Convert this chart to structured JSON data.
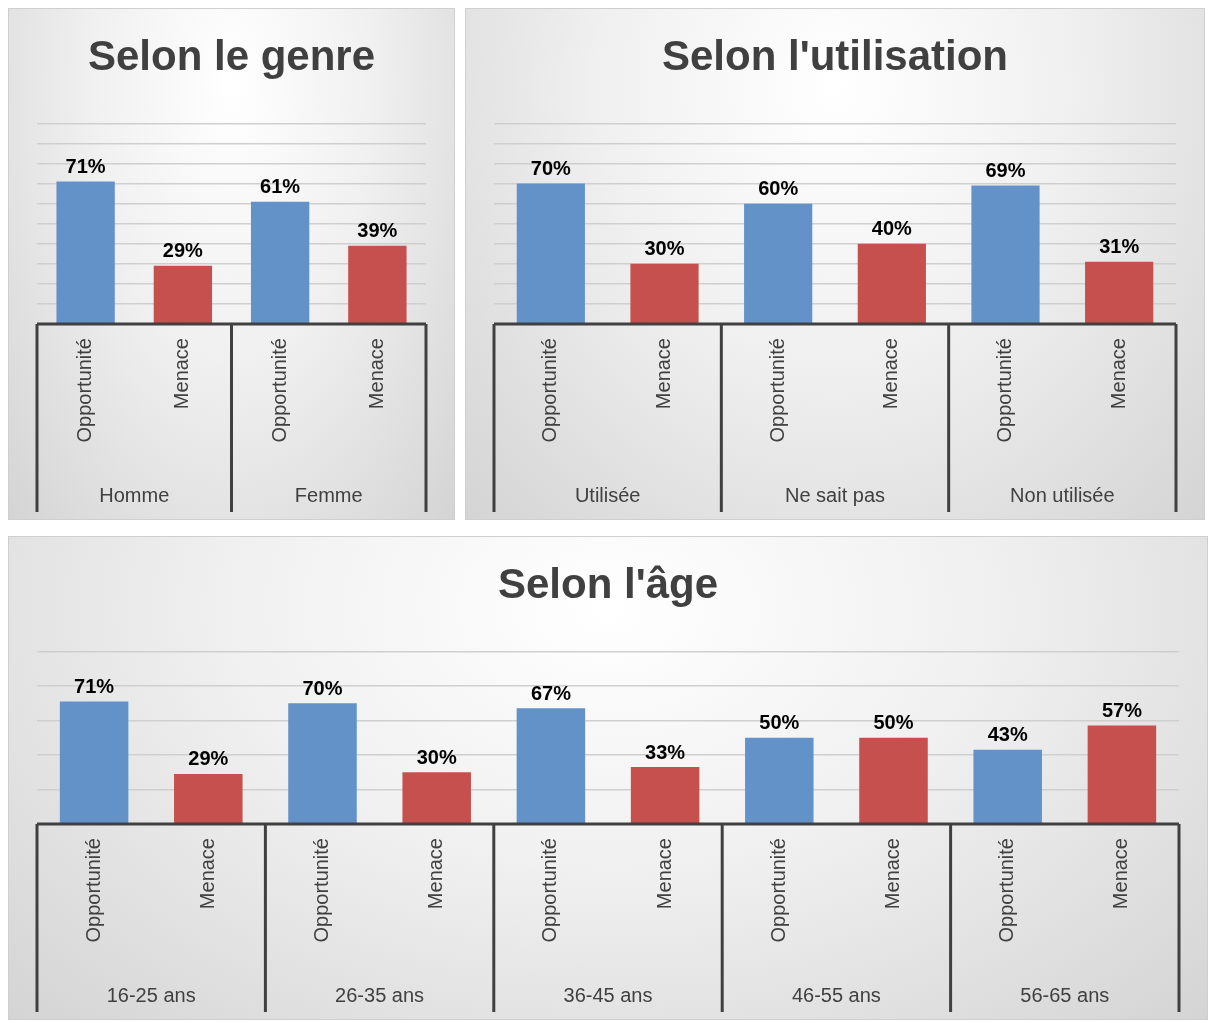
{
  "chart_data": [
    {
      "type": "bar",
      "title": "Selon le genre",
      "categories": [
        "Homme",
        "Femme"
      ],
      "series": [
        {
          "name": "Opportunité",
          "color": "#6392c9",
          "values": [
            71,
            61
          ],
          "value_labels": [
            "71%",
            "61%"
          ]
        },
        {
          "name": "Menace",
          "color": "#c5504d",
          "values": [
            29,
            39
          ],
          "value_labels": [
            "29%",
            "39%"
          ]
        }
      ],
      "ylim": [
        0,
        100
      ],
      "yticks": [
        {
          "value": 0,
          "label": null
        },
        {
          "value": 10,
          "label": null
        },
        {
          "value": 20,
          "label": null
        },
        {
          "value": 30,
          "label": null
        },
        {
          "value": 40,
          "label": null
        },
        {
          "value": 50,
          "label": null
        },
        {
          "value": 60,
          "label": null
        },
        {
          "value": 70,
          "label": null
        },
        {
          "value": 80,
          "label": null
        },
        {
          "value": 90,
          "label": null
        },
        {
          "value": 100,
          "label": null
        }
      ],
      "grid": true,
      "tick_labels": "x"
    },
    {
      "type": "bar",
      "title": "Selon l'utilisation",
      "categories": [
        "Utilisée",
        "Ne sait pas",
        "Non utilisée"
      ],
      "series": [
        {
          "name": "Opportunité",
          "color": "#6392c9",
          "values": [
            70,
            60,
            69
          ],
          "value_labels": [
            "70%",
            "60%",
            "69%"
          ]
        },
        {
          "name": "Menace",
          "color": "#c5504d",
          "values": [
            30,
            40,
            31
          ],
          "value_labels": [
            "30%",
            "40%",
            "31%"
          ]
        }
      ],
      "ylim": [
        0,
        100
      ],
      "yticks": [
        {
          "value": 0,
          "label": null
        },
        {
          "value": 10,
          "label": null
        },
        {
          "value": 20,
          "label": null
        },
        {
          "value": 30,
          "label": null
        },
        {
          "value": 40,
          "label": null
        },
        {
          "value": 50,
          "label": null
        },
        {
          "value": 60,
          "label": null
        },
        {
          "value": 70,
          "label": null
        },
        {
          "value": 80,
          "label": null
        },
        {
          "value": 90,
          "label": null
        },
        {
          "value": 100,
          "label": null
        }
      ],
      "grid": true,
      "tick_labels": "x"
    },
    {
      "type": "bar",
      "title": "Selon l'âge",
      "categories": [
        "16-25 ans",
        "26-35 ans",
        "36-45 ans",
        "46-55 ans",
        "56-65 ans"
      ],
      "series": [
        {
          "name": "Opportunité",
          "color": "#6392c9",
          "values": [
            71,
            70,
            67,
            50,
            43
          ],
          "value_labels": [
            "71%",
            "70%",
            "67%",
            "50%",
            "43%"
          ]
        },
        {
          "name": "Menace",
          "color": "#c5504d",
          "values": [
            29,
            30,
            33,
            50,
            57
          ],
          "value_labels": [
            "29%",
            "30%",
            "33%",
            "50%",
            "57%"
          ]
        }
      ],
      "ylim": [
        0,
        100
      ],
      "yticks": [
        {
          "value": 0,
          "label": null
        },
        {
          "value": 20,
          "label": null
        },
        {
          "value": 40,
          "label": null
        },
        {
          "value": 60,
          "label": null
        },
        {
          "value": 80,
          "label": null
        },
        {
          "value": 100,
          "label": null
        }
      ],
      "grid": true,
      "tick_labels": "x"
    }
  ]
}
